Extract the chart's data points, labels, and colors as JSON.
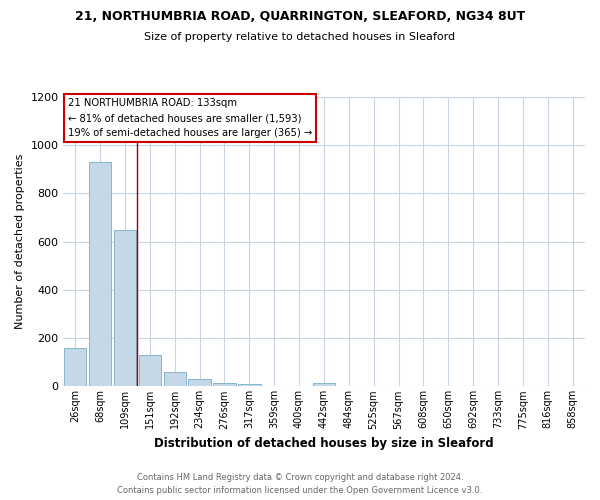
{
  "title1": "21, NORTHUMBRIA ROAD, QUARRINGTON, SLEAFORD, NG34 8UT",
  "title2": "Size of property relative to detached houses in Sleaford",
  "xlabel": "Distribution of detached houses by size in Sleaford",
  "ylabel": "Number of detached properties",
  "categories": [
    "26sqm",
    "68sqm",
    "109sqm",
    "151sqm",
    "192sqm",
    "234sqm",
    "276sqm",
    "317sqm",
    "359sqm",
    "400sqm",
    "442sqm",
    "484sqm",
    "525sqm",
    "567sqm",
    "608sqm",
    "650sqm",
    "692sqm",
    "733sqm",
    "775sqm",
    "816sqm",
    "858sqm"
  ],
  "values": [
    160,
    930,
    650,
    130,
    60,
    30,
    15,
    8,
    0,
    0,
    15,
    0,
    0,
    0,
    0,
    0,
    0,
    0,
    0,
    0,
    0
  ],
  "bar_color": "#c5d8e8",
  "bar_edge_color": "#7aaec8",
  "vline_x": 2.5,
  "vline_color": "#990000",
  "annotation_title": "21 NORTHUMBRIA ROAD: 133sqm",
  "annotation_line1": "← 81% of detached houses are smaller (1,593)",
  "annotation_line2": "19% of semi-detached houses are larger (365) →",
  "annotation_box_color": "#ffffff",
  "annotation_border_color": "#cc0000",
  "footer1": "Contains HM Land Registry data © Crown copyright and database right 2024.",
  "footer2": "Contains public sector information licensed under the Open Government Licence v3.0.",
  "ylim": [
    0,
    1200
  ],
  "yticks": [
    0,
    200,
    400,
    600,
    800,
    1000,
    1200
  ],
  "background_color": "#ffffff",
  "grid_color": "#c8d4e4"
}
